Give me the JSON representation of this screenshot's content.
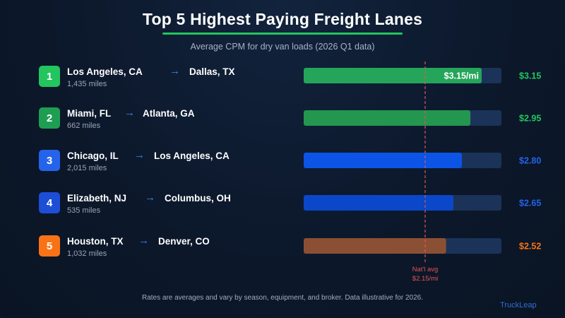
{
  "title": "Top 5 Highest Paying Freight Lanes",
  "subtitle": "Average CPM for dry van loads (2026 Q1 data)",
  "footnote": "Rates are averages and vary by season, equipment, and broker. Data illustrative for 2026.",
  "brand": "TruckLeap",
  "arrow_glyph": "→",
  "lanes": [
    {
      "rank": "1",
      "origin": "Los Angeles, CA",
      "destination": "Dallas, TX",
      "miles": "1,435 miles",
      "value_label": "$3.15",
      "inner_label": "$3.15/mi",
      "badge_color": "#22c55e",
      "bar_color": "#25a55a",
      "label_color": "#22c55e"
    },
    {
      "rank": "2",
      "origin": "Miami, FL",
      "destination": "Atlanta, GA",
      "miles": "662 miles",
      "value_label": "$2.95",
      "inner_label": "",
      "badge_color": "#1e9e52",
      "bar_color": "#239650",
      "label_color": "#22c55e"
    },
    {
      "rank": "3",
      "origin": "Chicago, IL",
      "destination": "Los Angeles, CA",
      "miles": "2,015 miles",
      "value_label": "$2.80",
      "inner_label": "",
      "badge_color": "#2563eb",
      "bar_color": "#0b54e6",
      "label_color": "#2563eb"
    },
    {
      "rank": "4",
      "origin": "Elizabeth, NJ",
      "destination": "Columbus, OH",
      "miles": "535 miles",
      "value_label": "$2.65",
      "inner_label": "",
      "badge_color": "#1d4ed8",
      "bar_color": "#0a47c9",
      "label_color": "#2563eb"
    },
    {
      "rank": "5",
      "origin": "Houston, TX",
      "destination": "Denver, CO",
      "miles": "1,032 miles",
      "value_label": "$2.52",
      "inner_label": "",
      "badge_color": "#f97316",
      "bar_color": "#8b5034",
      "label_color": "#f97316"
    }
  ],
  "chart_data": {
    "type": "bar",
    "orientation": "horizontal",
    "categories": [
      "Los Angeles, CA → Dallas, TX",
      "Miami, FL → Atlanta, GA",
      "Chicago, IL → Los Angeles, CA",
      "Elizabeth, NJ → Columbus, OH",
      "Houston, TX → Denver, CO"
    ],
    "values": [
      3.15,
      2.95,
      2.8,
      2.65,
      2.52
    ],
    "xlim": [
      0.0,
      3.5
    ],
    "reference_line": {
      "value": 2.15,
      "label_line1": "Nat'l avg",
      "label_line2": "$2.15/mi",
      "color": "#e05555"
    },
    "track_color": "#1b3358",
    "grid": false,
    "legend": "none"
  }
}
